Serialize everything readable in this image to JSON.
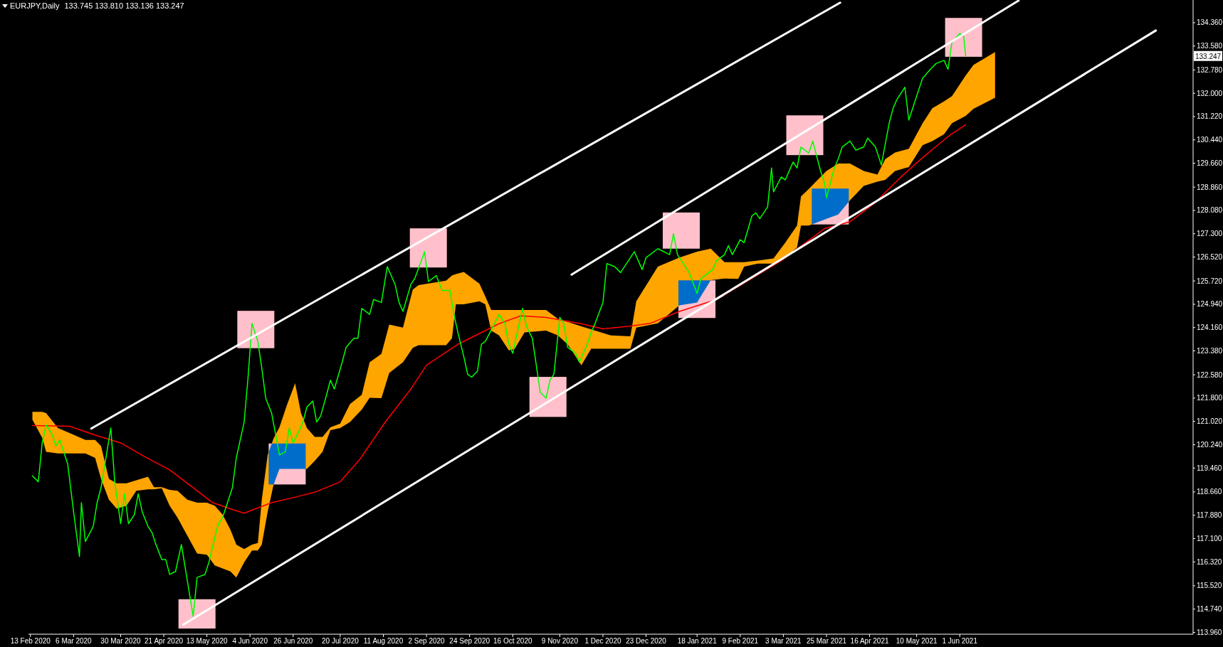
{
  "chart_data": {
    "type": "line",
    "title": "EURJPY,Daily",
    "subtitle": "133.745 133.810 133.136 133.247",
    "xlim": [
      "2020-02-12",
      "2021-09-28"
    ],
    "xticks": [
      {
        "value": "2020-02-13",
        "label": "13 Feb 2020"
      },
      {
        "value": "2020-03-06",
        "label": "6 Mar 2020"
      },
      {
        "value": "2020-03-30",
        "label": "30 Mar 2020"
      },
      {
        "value": "2020-04-21",
        "label": "21 Apr 2020"
      },
      {
        "value": "2020-05-13",
        "label": "13 May 2020"
      },
      {
        "value": "2020-06-04",
        "label": "4 Jun 2020"
      },
      {
        "value": "2020-06-26",
        "label": "26 Jun 2020"
      },
      {
        "value": "2020-07-20",
        "label": "20 Jul 2020"
      },
      {
        "value": "2020-08-11",
        "label": "11 Aug 2020"
      },
      {
        "value": "2020-09-02",
        "label": "2 Sep 2020"
      },
      {
        "value": "2020-09-24",
        "label": "24 Sep 2020"
      },
      {
        "value": "2020-10-16",
        "label": "16 Oct 2020"
      },
      {
        "value": "2020-11-09",
        "label": "9 Nov 2020"
      },
      {
        "value": "2020-12-01",
        "label": "1 Dec 2020"
      },
      {
        "value": "2020-12-23",
        "label": "23 Dec 2020"
      },
      {
        "value": "2021-01-18",
        "label": "18 Jan 2021"
      },
      {
        "value": "2021-02-09",
        "label": "9 Feb 2021"
      },
      {
        "value": "2021-03-03",
        "label": "3 Mar 2021"
      },
      {
        "value": "2021-03-25",
        "label": "25 Mar 2021"
      },
      {
        "value": "2021-04-16",
        "label": "16 Apr 2021"
      },
      {
        "value": "2021-05-10",
        "label": "10 May 2021"
      },
      {
        "value": "2021-06-01",
        "label": "1 Jun 2021"
      }
    ],
    "ylim": [
      113.9,
      135.12
    ],
    "yticks": [
      {
        "value": 113.96,
        "label": "113.960"
      },
      {
        "value": 114.74,
        "label": "114.740"
      },
      {
        "value": 115.52,
        "label": "115.520"
      },
      {
        "value": 116.32,
        "label": "116.320"
      },
      {
        "value": 117.1,
        "label": "117.100"
      },
      {
        "value": 117.88,
        "label": "117.880"
      },
      {
        "value": 118.66,
        "label": "118.660"
      },
      {
        "value": 119.46,
        "label": "119.460"
      },
      {
        "value": 120.24,
        "label": "120.240"
      },
      {
        "value": 121.02,
        "label": "121.020"
      },
      {
        "value": 121.8,
        "label": "121.800"
      },
      {
        "value": 122.58,
        "label": "122.580"
      },
      {
        "value": 123.38,
        "label": "123.380"
      },
      {
        "value": 124.16,
        "label": "124.160"
      },
      {
        "value": 124.94,
        "label": "124.940"
      },
      {
        "value": 125.72,
        "label": "125.720"
      },
      {
        "value": 126.52,
        "label": "126.520"
      },
      {
        "value": 127.3,
        "label": "127.300"
      },
      {
        "value": 128.08,
        "label": "128.080"
      },
      {
        "value": 128.86,
        "label": "128.860"
      },
      {
        "value": 129.66,
        "label": "129.660"
      },
      {
        "value": 130.44,
        "label": "130.440"
      },
      {
        "value": 131.22,
        "label": "131.220"
      },
      {
        "value": 132,
        "label": "132.000"
      },
      {
        "value": 132.78,
        "label": "132.780"
      },
      {
        "value": 133.58,
        "label": "133.580"
      },
      {
        "value": 134.36,
        "label": "134.360"
      }
    ],
    "marker": "none",
    "annotations": [
      {
        "text": "133.247",
        "y": 133.247
      }
    ],
    "series": [
      {
        "type": "area",
        "color": "#ffa500",
        "x": [
          "2020-02-14",
          "2020-02-19",
          "2020-02-21",
          "2020-02-27",
          "2020-03-05",
          "2020-03-12",
          "2020-03-17",
          "2020-03-20",
          "2020-03-24",
          "2020-03-28",
          "2020-04-02",
          "2020-04-07",
          "2020-04-13",
          "2020-04-16",
          "2020-04-20",
          "2020-04-24",
          "2020-04-28",
          "2020-05-03",
          "2020-05-08",
          "2020-05-13",
          "2020-05-17",
          "2020-05-21",
          "2020-05-25",
          "2020-05-28",
          "2020-06-01",
          "2020-06-05",
          "2020-06-08",
          "2020-06-10",
          "2020-06-13",
          "2020-06-16",
          "2020-06-19",
          "2020-06-23",
          "2020-06-27",
          "2020-06-30",
          "2020-07-03",
          "2020-07-07",
          "2020-07-11",
          "2020-07-15",
          "2020-07-20",
          "2020-07-25",
          "2020-07-31",
          "2020-08-04",
          "2020-08-10",
          "2020-08-14",
          "2020-08-21",
          "2020-08-26",
          "2020-08-29",
          "2020-09-12",
          "2020-09-15",
          "2020-09-17",
          "2020-09-21",
          "2020-09-29",
          "2020-10-02",
          "2020-10-05",
          "2020-10-09",
          "2020-10-14",
          "2020-10-17",
          "2020-10-22",
          "2020-11-02",
          "2020-11-08",
          "2020-11-13",
          "2020-11-20",
          "2020-11-25",
          "2020-12-05",
          "2020-12-15",
          "2020-12-18",
          "2020-12-29",
          "2021-01-09",
          "2021-01-18",
          "2021-01-25",
          "2021-02-01",
          "2021-02-08",
          "2021-02-11",
          "2021-02-18",
          "2021-02-26",
          "2021-03-04",
          "2021-03-10",
          "2021-03-12",
          "2021-03-16",
          "2021-03-25",
          "2021-03-31",
          "2021-04-06",
          "2021-04-13",
          "2021-04-20",
          "2021-04-24",
          "2021-04-29",
          "2021-05-06",
          "2021-05-13",
          "2021-05-18",
          "2021-05-24",
          "2021-05-28",
          "2021-06-04",
          "2021-06-08",
          "2021-06-19"
        ],
        "values": [
          null,
          null,
          null,
          null,
          null,
          null,
          null,
          null,
          null,
          null,
          null,
          null,
          null,
          null,
          null,
          null,
          null,
          null,
          null,
          null,
          null,
          null,
          null,
          null,
          null,
          null,
          null,
          null,
          null,
          null,
          null,
          null,
          null,
          null,
          null,
          null,
          null,
          null,
          null,
          null,
          null,
          null,
          null,
          null,
          null,
          null,
          null,
          null,
          null,
          null,
          null,
          null,
          null,
          null,
          null,
          null,
          null,
          null,
          null,
          null,
          null,
          null,
          null,
          null,
          null,
          null,
          null,
          null,
          null,
          null,
          null,
          null,
          null,
          null,
          null,
          null,
          null,
          null,
          null,
          null,
          null,
          null,
          null,
          null,
          null,
          null,
          null,
          null,
          null,
          null,
          null,
          null,
          null,
          null
        ],
        "lower": [
          121.08,
          120.47,
          120.0,
          119.95,
          119.95,
          119.95,
          119.8,
          119.1,
          118.4,
          118.1,
          118.2,
          118.7,
          118.75,
          118.75,
          118.78,
          118.2,
          117.8,
          117.2,
          116.6,
          116.56,
          116.2,
          116.1,
          116.0,
          115.8,
          116.3,
          116.7,
          116.7,
          116.9,
          118.0,
          118.9,
          119.43,
          119.43,
          119.43,
          119.43,
          119.43,
          119.7,
          120.0,
          120.73,
          120.8,
          121.0,
          121.42,
          121.81,
          121.8,
          122.64,
          123.0,
          123.48,
          123.57,
          123.57,
          123.8,
          124.94,
          124.94,
          125.04,
          124.94,
          124.06,
          123.9,
          123.4,
          123.45,
          124.0,
          124.06,
          123.9,
          123.6,
          122.9,
          123.45,
          123.45,
          123.45,
          124.16,
          124.3,
          124.9,
          125.0,
          125.75,
          125.8,
          125.79,
          126.2,
          126.3,
          126.3,
          126.5,
          126.84,
          127.57,
          127.57,
          127.8,
          127.94,
          128.42,
          128.9,
          129.04,
          129.1,
          129.4,
          129.53,
          130.26,
          130.4,
          130.63,
          131.0,
          131.24,
          131.48,
          131.85
        ],
        "upper": [
          121.34,
          121.34,
          121.3,
          120.8,
          120.6,
          120.4,
          120.4,
          120.2,
          119.1,
          118.95,
          118.95,
          119.05,
          119.17,
          118.82,
          118.82,
          118.73,
          118.7,
          118.4,
          118.3,
          118.3,
          118.2,
          117.9,
          117.4,
          116.9,
          116.75,
          116.9,
          116.95,
          118.4,
          119.9,
          120.45,
          120.82,
          121.6,
          122.3,
          121.3,
          120.8,
          120.5,
          120.5,
          120.82,
          120.95,
          121.6,
          121.91,
          123.0,
          123.28,
          124.26,
          124.16,
          125.43,
          125.58,
          125.73,
          125.9,
          125.95,
          126.02,
          125.63,
          125.2,
          124.75,
          124.75,
          124.75,
          124.75,
          124.75,
          124.75,
          124.45,
          124.35,
          124.2,
          124.1,
          123.9,
          123.87,
          125.04,
          126.2,
          126.5,
          126.7,
          126.8,
          126.35,
          126.35,
          126.35,
          126.4,
          126.47,
          127.0,
          127.57,
          128.55,
          128.8,
          129.4,
          129.65,
          129.65,
          129.4,
          129.28,
          129.8,
          130.02,
          130.14,
          130.99,
          131.5,
          131.73,
          131.9,
          132.59,
          132.95,
          133.38
        ]
      },
      {
        "type": "bar",
        "color": "#ffc0cb",
        "x": [
          "2020-05-08",
          "2020-06-07",
          "2020-06-23",
          "2020-09-03",
          "2020-11-03",
          "2021-01-10",
          "2021-01-18",
          "2021-03-14",
          "2021-03-27",
          "2021-06-03"
        ],
        "base": [
          114.09,
          123.47,
          118.91,
          126.17,
          121.17,
          126.8,
          124.48,
          129.93,
          127.61,
          133.22
        ],
        "values": [
          0.98,
          1.25,
          1.37,
          1.31,
          1.34,
          1.21,
          1.26,
          1.33,
          1.2,
          1.3
        ]
      },
      {
        "color": "#ff0000",
        "x": [
          "2020-02-14",
          "2020-03-04",
          "2020-03-17",
          "2020-03-30",
          "2020-04-11",
          "2020-04-24",
          "2020-05-07",
          "2020-05-16",
          "2020-05-27",
          "2020-06-01",
          "2020-06-15",
          "2020-06-28",
          "2020-07-07",
          "2020-07-20",
          "2020-07-30",
          "2020-08-12",
          "2020-08-25",
          "2020-09-02",
          "2020-09-18",
          "2020-10-09",
          "2020-10-20",
          "2020-11-02",
          "2020-11-19",
          "2020-12-01",
          "2020-12-14",
          "2020-12-25",
          "2021-01-09",
          "2021-01-28",
          "2021-03-02",
          "2021-03-24",
          "2021-04-06",
          "2021-04-19",
          "2021-05-02",
          "2021-05-14",
          "2021-05-27",
          "2021-06-04"
        ],
        "values": [
          120.88,
          120.86,
          120.56,
          120.3,
          119.85,
          119.4,
          118.75,
          118.3,
          118.05,
          117.95,
          118.3,
          118.5,
          118.65,
          119.0,
          119.75,
          121.0,
          122.1,
          122.9,
          123.6,
          124.29,
          124.55,
          124.5,
          124.3,
          124.12,
          124.2,
          124.3,
          124.7,
          125.1,
          126.4,
          127.47,
          127.7,
          128.35,
          129.2,
          129.9,
          130.6,
          130.95
        ]
      },
      {
        "color": "#00ff00",
        "x": [
          "2020-02-14",
          "2020-02-17",
          "2020-02-19",
          "2020-02-21",
          "2020-02-24",
          "2020-02-26",
          "2020-02-28",
          "2020-03-03",
          "2020-03-06",
          "2020-03-09",
          "2020-03-10",
          "2020-03-12",
          "2020-03-16",
          "2020-03-18",
          "2020-03-20",
          "2020-03-23",
          "2020-03-25",
          "2020-03-27",
          "2020-03-30",
          "2020-04-01",
          "2020-04-03",
          "2020-04-06",
          "2020-04-08",
          "2020-04-10",
          "2020-04-13",
          "2020-04-15",
          "2020-04-17",
          "2020-04-20",
          "2020-04-22",
          "2020-04-24",
          "2020-04-27",
          "2020-04-30",
          "2020-05-04",
          "2020-05-06",
          "2020-05-08",
          "2020-05-12",
          "2020-05-14",
          "2020-05-18",
          "2020-05-19",
          "2020-05-21",
          "2020-05-26",
          "2020-05-28",
          "2020-06-01",
          "2020-06-03",
          "2020-06-05",
          "2020-06-08",
          "2020-06-10",
          "2020-06-12",
          "2020-06-15",
          "2020-06-17",
          "2020-06-19",
          "2020-06-22",
          "2020-06-24",
          "2020-06-26",
          "2020-06-29",
          "2020-07-01",
          "2020-07-03",
          "2020-07-06",
          "2020-07-08",
          "2020-07-10",
          "2020-07-13",
          "2020-07-15",
          "2020-07-17",
          "2020-07-21",
          "2020-07-23",
          "2020-07-27",
          "2020-07-29",
          "2020-07-31",
          "2020-08-04",
          "2020-08-06",
          "2020-08-10",
          "2020-08-13",
          "2020-08-17",
          "2020-08-19",
          "2020-08-21",
          "2020-08-25",
          "2020-08-27",
          "2020-08-31",
          "2020-09-01",
          "2020-09-03",
          "2020-09-07",
          "2020-09-10",
          "2020-09-14",
          "2020-09-16",
          "2020-09-18",
          "2020-09-21",
          "2020-09-23",
          "2020-09-25",
          "2020-09-28",
          "2020-09-30",
          "2020-10-02",
          "2020-10-06",
          "2020-10-09",
          "2020-10-12",
          "2020-10-14",
          "2020-10-16",
          "2020-10-20",
          "2020-10-21",
          "2020-10-23",
          "2020-10-26",
          "2020-10-28",
          "2020-10-30",
          "2020-11-02",
          "2020-11-04",
          "2020-11-06",
          "2020-11-09",
          "2020-11-11",
          "2020-11-13",
          "2020-11-17",
          "2020-11-19",
          "2020-11-23",
          "2020-11-25",
          "2020-11-27",
          "2020-12-01",
          "2020-12-03",
          "2020-12-07",
          "2020-12-10",
          "2020-12-14",
          "2020-12-17",
          "2020-12-21",
          "2020-12-23",
          "2020-12-29",
          "2021-01-04",
          "2021-01-06",
          "2021-01-08",
          "2021-01-12",
          "2021-01-14",
          "2021-01-18",
          "2021-01-20",
          "2021-01-22",
          "2021-01-26",
          "2021-01-28",
          "2021-02-01",
          "2021-02-03",
          "2021-02-05",
          "2021-02-09",
          "2021-02-11",
          "2021-02-15",
          "2021-02-17",
          "2021-02-19",
          "2021-02-23",
          "2021-02-25",
          "2021-02-26",
          "2021-03-02",
          "2021-03-04",
          "2021-03-08",
          "2021-03-10",
          "2021-03-12",
          "2021-03-16",
          "2021-03-18",
          "2021-03-22",
          "2021-03-24",
          "2021-03-25",
          "2021-03-29",
          "2021-03-31",
          "2021-04-02",
          "2021-04-06",
          "2021-04-09",
          "2021-04-13",
          "2021-04-15",
          "2021-04-19",
          "2021-04-21",
          "2021-04-22",
          "2021-04-26",
          "2021-04-28",
          "2021-04-30",
          "2021-05-04",
          "2021-05-06",
          "2021-05-10",
          "2021-05-13",
          "2021-05-17",
          "2021-05-20",
          "2021-05-24",
          "2021-05-26",
          "2021-05-28",
          "2021-06-01",
          "2021-06-03",
          "2021-06-04"
        ],
        "values": [
          119.2,
          119.0,
          120.3,
          120.9,
          120.6,
          120.2,
          120.4,
          119.6,
          118.0,
          116.5,
          118.3,
          117.0,
          117.5,
          118.3,
          118.8,
          120.0,
          120.8,
          119.0,
          117.6,
          118.6,
          117.6,
          117.9,
          118.6,
          118.0,
          117.5,
          117.3,
          116.9,
          116.4,
          116.4,
          115.9,
          116.0,
          116.9,
          115.3,
          114.5,
          115.8,
          115.9,
          116.3,
          117.4,
          117.6,
          117.8,
          118.8,
          119.8,
          121.0,
          122.5,
          124.3,
          123.7,
          122.8,
          121.8,
          121.3,
          120.6,
          119.9,
          120.0,
          120.8,
          120.3,
          120.7,
          121.0,
          121.5,
          121.7,
          121.0,
          121.2,
          121.9,
          122.4,
          122.1,
          123.0,
          123.5,
          123.8,
          123.8,
          124.8,
          124.6,
          125.1,
          125.0,
          126.2,
          125.6,
          125.0,
          124.7,
          125.6,
          125.8,
          126.5,
          126.7,
          125.7,
          125.9,
          125.4,
          125.4,
          124.6,
          124.0,
          123.2,
          122.6,
          122.5,
          122.7,
          123.6,
          123.7,
          124.2,
          124.6,
          124.3,
          123.6,
          123.3,
          124.5,
          124.8,
          124.2,
          123.8,
          122.9,
          122.0,
          121.8,
          122.4,
          122.6,
          124.5,
          124.3,
          123.5,
          123.3,
          123.0,
          123.6,
          124.0,
          124.3,
          125.0,
          126.3,
          126.2,
          126.0,
          126.4,
          126.7,
          126.1,
          126.5,
          126.8,
          126.6,
          127.3,
          126.6,
          126.2,
          126.0,
          125.3,
          125.8,
          125.9,
          126.1,
          126.4,
          126.6,
          126.9,
          126.6,
          127.1,
          127.0,
          127.9,
          128.0,
          127.8,
          128.2,
          129.5,
          128.7,
          129.2,
          129.1,
          129.7,
          129.5,
          130.2,
          130.0,
          130.4,
          129.4,
          129.0,
          128.5,
          129.5,
          129.8,
          130.2,
          130.4,
          130.1,
          130.2,
          130.5,
          130.2,
          129.8,
          129.6,
          131.0,
          131.5,
          131.8,
          132.2,
          131.1,
          131.9,
          132.5,
          132.8,
          133.0,
          133.1,
          132.8,
          133.7,
          134.0,
          133.9,
          133.247
        ]
      },
      {
        "color": "#ffffff",
        "x": [
          "2020-03-15",
          "2021-04-01"
        ],
        "values": [
          120.78,
          135.03
        ]
      },
      {
        "color": "#ffffff",
        "x": [
          "2020-05-01",
          "2021-09-09"
        ],
        "values": [
          114.22,
          134.1
        ]
      },
      {
        "color": "#ffffff",
        "x": [
          "2020-11-15",
          "2021-07-01"
        ],
        "values": [
          125.93,
          135.1
        ]
      }
    ]
  }
}
